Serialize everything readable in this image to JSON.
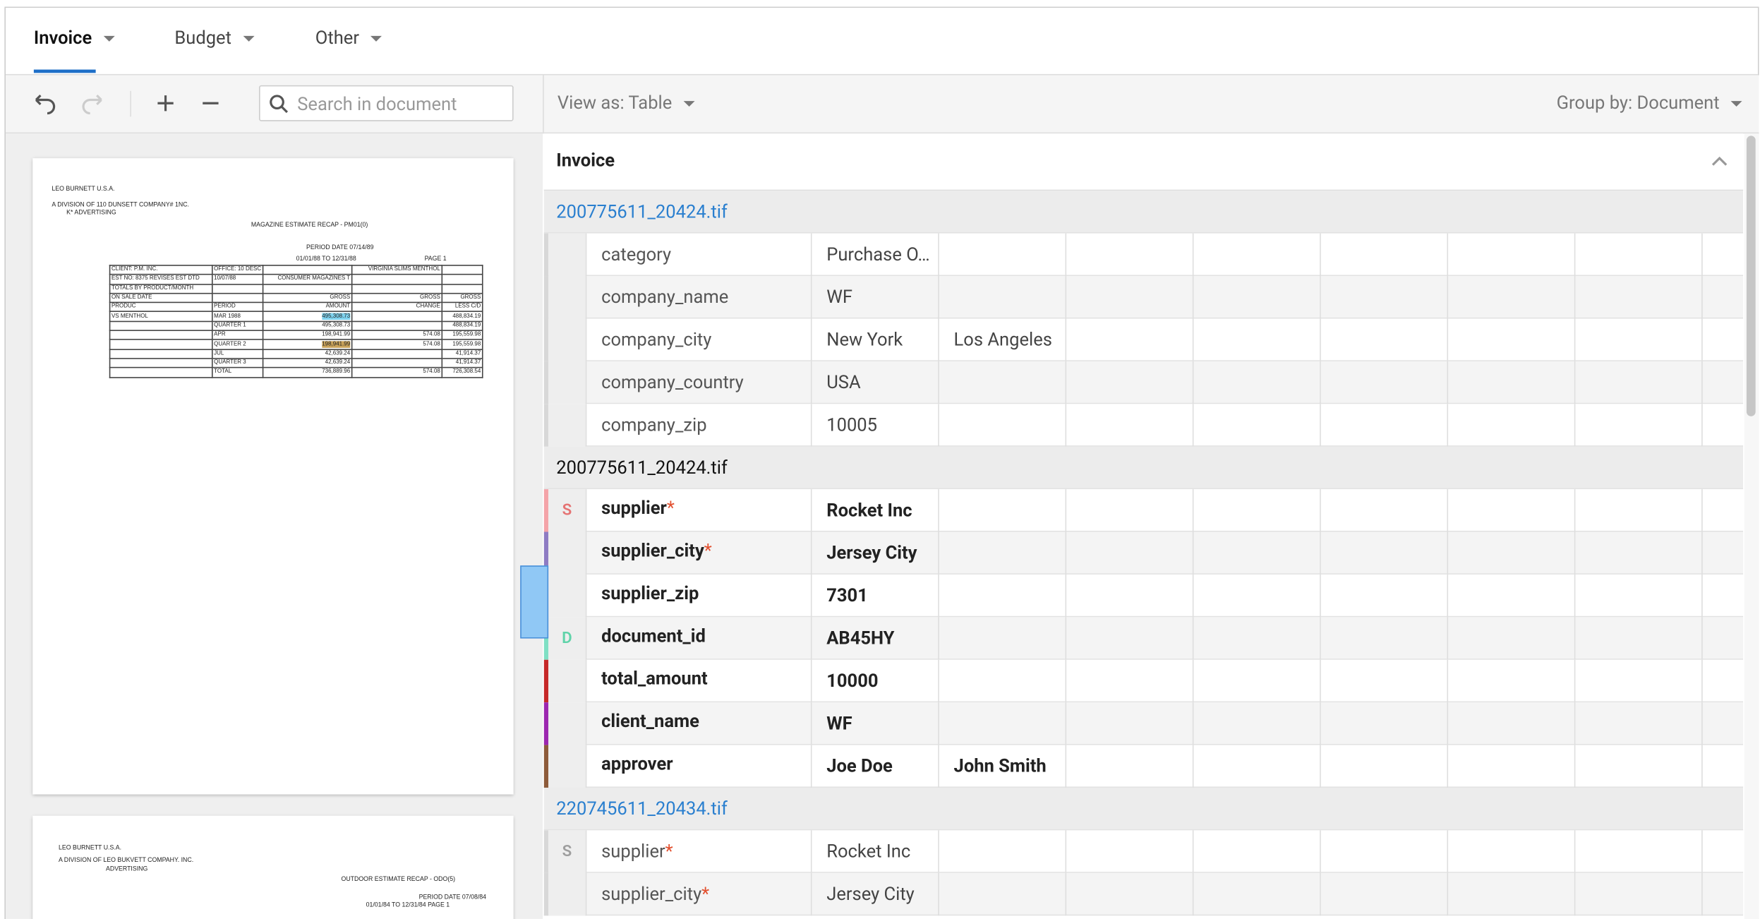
{
  "tabs": [
    "Invoice",
    "Budget",
    "Other"
  ],
  "toolbar": {
    "search_placeholder": "Search in document",
    "view_as": "View as: Table",
    "group_by": "Group by: Document"
  },
  "panel_title": "Invoice",
  "required_mark": "*",
  "document": {
    "page1": {
      "lines": [
        "LEO BURNETT U.S.A.",
        "A DIVISION OF 110 DUNSETT COMPANY# 1NC.",
        "K* ADVERTISING",
        "MAGAZINE ESTIMATE RECAP - PM01(0)",
        "PERIOD DATE 07/14/89",
        "01/01/88 TO 12/31/88",
        "PAGE 1"
      ],
      "table": [
        [
          "CLIENT: P.M. INC.",
          "OFFICE: 10 DESC",
          "",
          "VIRGINIA SLIMS MENTHOL",
          ""
        ],
        [
          "EST NO: 8375 REVISES EST DTD",
          "10/07/88",
          "CONSUMER MAGAZINES T",
          "",
          ""
        ],
        [
          "TOTALS BY PRODUCT/MONTH",
          "",
          "",
          "",
          ""
        ],
        [
          "ON SALE DATE",
          "",
          "GROSS",
          "GROSS",
          "GROSS"
        ],
        [
          "PRODUC",
          "PERIOD",
          "AMOUNT",
          "CHANGE",
          "LESS C/D"
        ],
        [
          "VS MENTHOL",
          "MAR 1988",
          "495,308.73",
          "",
          "488,834.19"
        ],
        [
          "",
          "QUARTER 1",
          "495,308.73",
          "",
          "488,834.19"
        ],
        [
          "",
          "APR",
          "198,941.99",
          "574.08",
          "195,559.98"
        ],
        [
          "",
          "QUARTER 2",
          "198,941.99",
          "574.08",
          "195,559.98"
        ],
        [
          "",
          "JUL",
          "42,639.24",
          "",
          "41,914.37"
        ],
        [
          "",
          "QUARTER 3",
          "42,639.24",
          "",
          "41,914.37"
        ],
        [
          "",
          "TOTAL",
          "736,889.96",
          "574.08",
          "726,308.54"
        ]
      ]
    },
    "page2": {
      "lines": [
        "LEO BURNETT U.S.A.",
        "A DIVISION OF LEO BUKVETT COMPAHY. INC.",
        "ADVERTISING",
        "OUTDOOR ESTIMATE RECAP - ODO(5)",
        "PERIOD DATE 07/08/84",
        "01/01/84 TO 12/31/84 PAGE 1"
      ]
    }
  },
  "groups": [
    {
      "file": "200775611_20424.tif",
      "link": true,
      "rows": [
        {
          "label": "category",
          "values": [
            "Purchase O…"
          ]
        },
        {
          "label": "company_name",
          "values": [
            "WF"
          ]
        },
        {
          "label": "company_city",
          "values": [
            "New York",
            "Los Angeles"
          ]
        },
        {
          "label": "company_country",
          "values": [
            "USA"
          ]
        },
        {
          "label": "company_zip",
          "values": [
            "10005"
          ]
        }
      ]
    },
    {
      "file": "200775611_20424.tif",
      "link": false,
      "bold": true,
      "rows": [
        {
          "badge": "S",
          "badge_color": "#e57373",
          "color": "#f4a3a8",
          "label": "supplier",
          "required": true,
          "values": [
            "Rocket Inc"
          ]
        },
        {
          "color": "#8e7cc3",
          "label": "supplier_city",
          "required": true,
          "values": [
            "Jersey City"
          ]
        },
        {
          "color": "#6d9eeb",
          "label": "supplier_zip",
          "values": [
            "7301"
          ]
        },
        {
          "badge": "D",
          "badge_color": "#5fd3a9",
          "color": "#7fe0c4",
          "label": "document_id",
          "values": [
            "AB45HY"
          ]
        },
        {
          "color": "#c62828",
          "label": "total_amount",
          "values": [
            "10000"
          ]
        },
        {
          "color": "#9c27b0",
          "label": "client_name",
          "values": [
            "WF"
          ]
        },
        {
          "color": "#8d5b3a",
          "label": "approver",
          "values": [
            "Joe Doe",
            "John Smith"
          ]
        }
      ]
    },
    {
      "file": "220745611_20434.tif",
      "link": true,
      "rows": [
        {
          "badge": "S",
          "badge_color": "#9e9e9e",
          "label": "supplier",
          "required": true,
          "values": [
            "Rocket Inc"
          ]
        },
        {
          "label": "supplier_city",
          "required": true,
          "values": [
            "Jersey City"
          ]
        }
      ]
    }
  ]
}
